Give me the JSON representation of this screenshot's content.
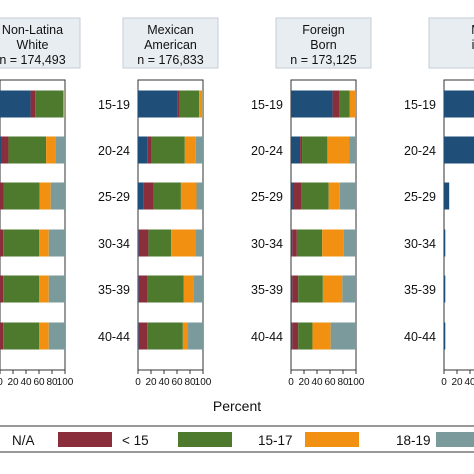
{
  "chart_data": {
    "type": "bar",
    "orientation": "horizontal",
    "stacked": true,
    "xlabel": "Percent",
    "xlim": [
      0,
      100
    ],
    "xticks": [
      0,
      20,
      40,
      60,
      80,
      100
    ],
    "categories": [
      "15-19",
      "20-24",
      "25-29",
      "30-34",
      "35-39",
      "40-44"
    ],
    "legend": {
      "position": "bottom",
      "items": [
        {
          "label": "N/A",
          "color": "#1f4e79"
        },
        {
          "label": "< 15",
          "color": "#8b2e3c"
        },
        {
          "label": "15-17",
          "color": "#4e7a2e"
        },
        {
          "label": "18-19",
          "color": "#f29111"
        },
        {
          "label": "",
          "color": "#7a9a9c"
        }
      ]
    },
    "panels": [
      {
        "title_lines": [
          "Non-Latina",
          "White",
          "n = 174,493"
        ],
        "series": [
          {
            "name": "N/A",
            "values": [
              47,
              3,
              0,
              0,
              0,
              0
            ]
          },
          {
            "name": "< 15",
            "values": [
              7,
              10,
              6,
              5,
              5,
              5
            ]
          },
          {
            "name": "15-17",
            "values": [
              43,
              58,
              55,
              55,
              55,
              55
            ]
          },
          {
            "name": "18-19",
            "values": [
              2,
              14,
              17,
              15,
              15,
              15
            ]
          },
          {
            "name": "",
            "values": [
              1,
              15,
              22,
              25,
              25,
              25
            ]
          }
        ]
      },
      {
        "title_lines": [
          "Mexican",
          "American",
          "n = 176,833"
        ],
        "series": [
          {
            "name": "N/A",
            "values": [
              61,
              15,
              9,
              1,
              1,
              1
            ]
          },
          {
            "name": "< 15",
            "values": [
              3,
              5,
              15,
              15,
              14,
              13
            ]
          },
          {
            "name": "15-17",
            "values": [
              30,
              52,
              42,
              35,
              55,
              55
            ]
          },
          {
            "name": "18-19",
            "values": [
              5,
              17,
              24,
              37,
              15,
              8
            ]
          },
          {
            "name": "",
            "values": [
              1,
              11,
              10,
              12,
              15,
              23
            ]
          }
        ]
      },
      {
        "title_lines": [
          "Foreign",
          "Born",
          "n = 173,125"
        ],
        "series": [
          {
            "name": "N/A",
            "values": [
              64,
              14,
              3,
              2,
              2,
              2
            ]
          },
          {
            "name": "< 15",
            "values": [
              11,
              3,
              13,
              7,
              9,
              9
            ]
          },
          {
            "name": "15-17",
            "values": [
              15,
              39,
              42,
              39,
              38,
              22
            ]
          },
          {
            "name": "18-19",
            "values": [
              9,
              34,
              17,
              33,
              30,
              28
            ]
          },
          {
            "name": "",
            "values": [
              1,
              10,
              25,
              19,
              21,
              39
            ]
          }
        ]
      },
      {
        "title_lines": [
          "M",
          "in"
        ],
        "series": [
          {
            "name": "N/A",
            "values": [
              55,
              55,
              8,
              2,
              2,
              2
            ]
          },
          {
            "name": "< 15",
            "values": [
              0,
              0,
              0,
              0,
              0,
              0
            ]
          },
          {
            "name": "15-17",
            "values": [
              0,
              0,
              0,
              0,
              0,
              0
            ]
          },
          {
            "name": "18-19",
            "values": [
              0,
              0,
              0,
              0,
              0,
              0
            ]
          },
          {
            "name": "",
            "values": [
              0,
              0,
              0,
              0,
              0,
              0
            ]
          }
        ]
      }
    ]
  }
}
